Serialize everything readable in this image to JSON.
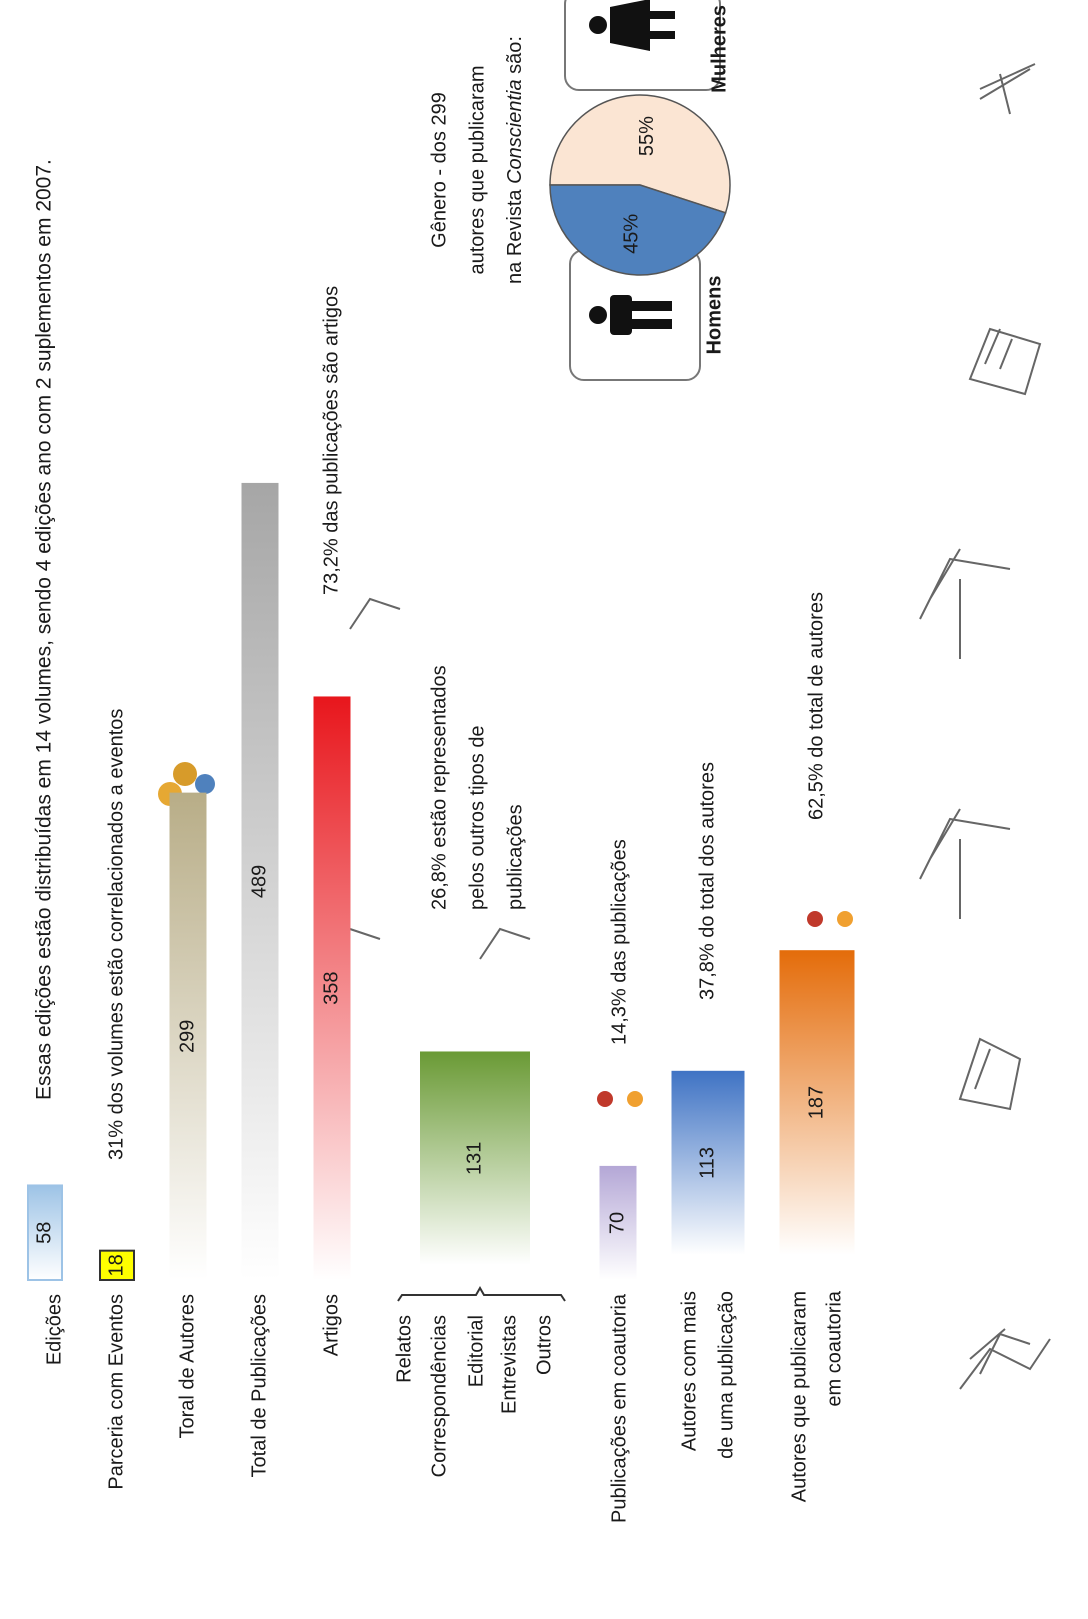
{
  "header": "Essas edições estão distribuídas em 14 volumes, sendo 4 edições ano com 2 suplementos em 2007.",
  "bars": [
    {
      "label": "Edições",
      "value": 58,
      "color": "#9dc3e6"
    },
    {
      "label": "Parceria com Eventos",
      "value": 18,
      "color": "#ffff00",
      "note": [
        "31%  dos volumes estão correlacionados a eventos"
      ]
    },
    {
      "label": "Toral de Autores",
      "value": 299,
      "color": "#b8ad87"
    },
    {
      "label": "Total de Publicações",
      "value": 489,
      "color": "#a6a6a6"
    },
    {
      "label": "Artigos",
      "value": 358,
      "color": "#e8161c",
      "note": [
        "73,2%  das publicações são artigos"
      ]
    },
    {
      "label": [
        "Relatos",
        "Correspondências",
        "Editorial",
        "Entrevistas",
        "Outros"
      ],
      "value": 131,
      "color": "#6a9a35",
      "note": [
        "26,8%  estão representados",
        "pelos outros tipos de",
        "publicações"
      ]
    },
    {
      "label": "Publicações em coautoria",
      "value": 70,
      "color": "#b4a7d6",
      "note": [
        "14,3% das publicações"
      ]
    },
    {
      "label": [
        "Autores com mais",
        "de uma publicação"
      ],
      "value": 113,
      "color": "#3f73c4",
      "note": [
        "37,8%  do total dos autores"
      ]
    },
    {
      "label": [
        "Autores que publicaram",
        "em coautoria"
      ],
      "value": 187,
      "color": "#e46c0a",
      "note": [
        "62,5%  do total de autores"
      ]
    }
  ],
  "pie": {
    "title": [
      "Gênero - dos 299",
      "autores que publicaram"
    ],
    "title_line3": [
      "na Revista ",
      "Conscientia",
      " são:"
    ],
    "slices": [
      {
        "name": "Homens",
        "value": 45,
        "label": "45%",
        "color": "#4f81bd"
      },
      {
        "name": "Mulheres",
        "value": 55,
        "label": "55%",
        "color": "#fbe5d3"
      }
    ]
  }
}
